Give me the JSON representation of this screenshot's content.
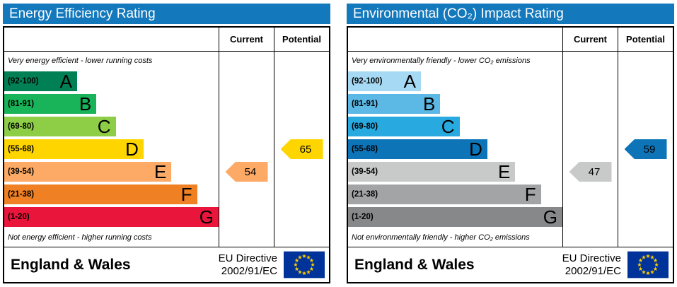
{
  "colors": {
    "header_bg": "#1479bc",
    "eu_flag_bg": "#003399",
    "eu_flag_star": "#ffcc00"
  },
  "chart_data": [
    {
      "type": "bar",
      "title": "Energy Efficiency Rating",
      "top_note": "Very energy efficient - lower running costs",
      "bottom_note": "Not energy efficient - higher running costs",
      "columns": {
        "current": "Current",
        "potential": "Potential"
      },
      "bands": [
        {
          "letter": "A",
          "range": "(92-100)",
          "min": 92,
          "max": 100,
          "color": "#008054",
          "width_pct": 34
        },
        {
          "letter": "B",
          "range": "(81-91)",
          "min": 81,
          "max": 91,
          "color": "#19b459",
          "width_pct": 43
        },
        {
          "letter": "C",
          "range": "(69-80)",
          "min": 69,
          "max": 80,
          "color": "#8dce46",
          "width_pct": 52
        },
        {
          "letter": "D",
          "range": "(55-68)",
          "min": 55,
          "max": 68,
          "color": "#ffd500",
          "width_pct": 65
        },
        {
          "letter": "E",
          "range": "(39-54)",
          "min": 39,
          "max": 54,
          "color": "#fcaa65",
          "width_pct": 78
        },
        {
          "letter": "F",
          "range": "(21-38)",
          "min": 21,
          "max": 38,
          "color": "#ef8023",
          "width_pct": 90
        },
        {
          "letter": "G",
          "range": "(1-20)",
          "min": 1,
          "max": 20,
          "color": "#e9153b",
          "width_pct": 100
        }
      ],
      "current": {
        "value": 54,
        "band": "E",
        "color": "#fcaa65"
      },
      "potential": {
        "value": 65,
        "band": "D",
        "color": "#ffd500"
      },
      "footer": {
        "region": "England & Wales",
        "directive_line1": "EU Directive",
        "directive_line2": "2002/91/EC"
      }
    },
    {
      "type": "bar",
      "title": "Environmental (CO₂) Impact Rating",
      "top_note": "Very environmentally friendly - lower CO₂ emissions",
      "bottom_note": "Not environmentally friendly - higher CO₂ emissions",
      "columns": {
        "current": "Current",
        "potential": "Potential"
      },
      "bands": [
        {
          "letter": "A",
          "range": "(92-100)",
          "min": 92,
          "max": 100,
          "color": "#a6d9f3",
          "width_pct": 34
        },
        {
          "letter": "B",
          "range": "(81-91)",
          "min": 81,
          "max": 91,
          "color": "#5cb8e5",
          "width_pct": 43
        },
        {
          "letter": "C",
          "range": "(69-80)",
          "min": 69,
          "max": 80,
          "color": "#28a9e0",
          "width_pct": 52
        },
        {
          "letter": "D",
          "range": "(55-68)",
          "min": 55,
          "max": 68,
          "color": "#0e74b8",
          "width_pct": 65
        },
        {
          "letter": "E",
          "range": "(39-54)",
          "min": 39,
          "max": 54,
          "color": "#c8caca",
          "width_pct": 78
        },
        {
          "letter": "F",
          "range": "(21-38)",
          "min": 21,
          "max": 38,
          "color": "#a2a4a6",
          "width_pct": 90
        },
        {
          "letter": "G",
          "range": "(1-20)",
          "min": 1,
          "max": 20,
          "color": "#87888a",
          "width_pct": 100
        }
      ],
      "current": {
        "value": 47,
        "band": "E",
        "color": "#c8caca"
      },
      "potential": {
        "value": 59,
        "band": "D",
        "color": "#0e74b8"
      },
      "footer": {
        "region": "England & Wales",
        "directive_line1": "EU Directive",
        "directive_line2": "2002/91/EC"
      }
    }
  ]
}
